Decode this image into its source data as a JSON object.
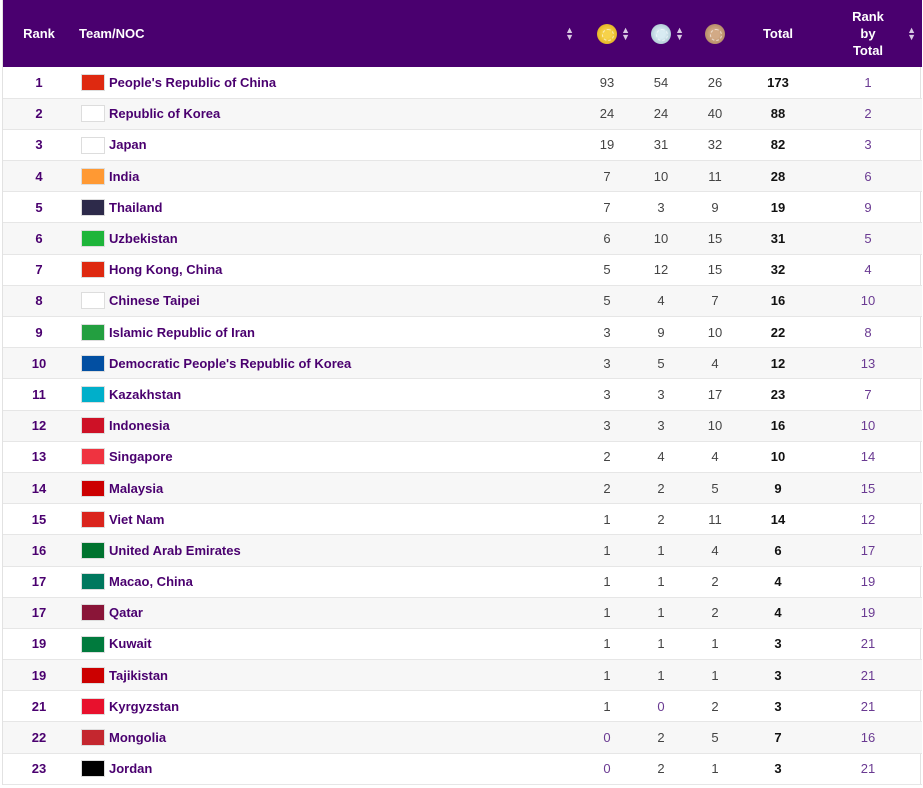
{
  "header": {
    "rank": "Rank",
    "team": "Team/NOC",
    "gold_icon": "gold-medal-icon",
    "silver_icon": "silver-medal-icon",
    "bronze_icon": "bronze-medal-icon",
    "total": "Total",
    "rank_by_total": [
      "Rank",
      "by",
      "Total"
    ]
  },
  "rows": [
    {
      "rank": "1",
      "team": "People's Republic of China",
      "gold": "93",
      "silver": "54",
      "bronze": "26",
      "total": "173",
      "rbt": "1",
      "flag": "#de2910"
    },
    {
      "rank": "2",
      "team": "Republic of Korea",
      "gold": "24",
      "silver": "24",
      "bronze": "40",
      "total": "88",
      "rbt": "2",
      "flag": "#ffffff"
    },
    {
      "rank": "3",
      "team": "Japan",
      "gold": "19",
      "silver": "31",
      "bronze": "32",
      "total": "82",
      "rbt": "3",
      "flag": "#ffffff"
    },
    {
      "rank": "4",
      "team": "India",
      "gold": "7",
      "silver": "10",
      "bronze": "11",
      "total": "28",
      "rbt": "6",
      "flag": "#ff9933"
    },
    {
      "rank": "5",
      "team": "Thailand",
      "gold": "7",
      "silver": "3",
      "bronze": "9",
      "total": "19",
      "rbt": "9",
      "flag": "#2d2a4a"
    },
    {
      "rank": "6",
      "team": "Uzbekistan",
      "gold": "6",
      "silver": "10",
      "bronze": "15",
      "total": "31",
      "rbt": "5",
      "flag": "#1eb53a"
    },
    {
      "rank": "7",
      "team": "Hong Kong, China",
      "gold": "5",
      "silver": "12",
      "bronze": "15",
      "total": "32",
      "rbt": "4",
      "flag": "#de2910"
    },
    {
      "rank": "8",
      "team": "Chinese Taipei",
      "gold": "5",
      "silver": "4",
      "bronze": "7",
      "total": "16",
      "rbt": "10",
      "flag": "#ffffff"
    },
    {
      "rank": "9",
      "team": "Islamic Republic of Iran",
      "gold": "3",
      "silver": "9",
      "bronze": "10",
      "total": "22",
      "rbt": "8",
      "flag": "#239f40"
    },
    {
      "rank": "10",
      "team": "Democratic People's Republic of Korea",
      "gold": "3",
      "silver": "5",
      "bronze": "4",
      "total": "12",
      "rbt": "13",
      "flag": "#024fa2"
    },
    {
      "rank": "11",
      "team": "Kazakhstan",
      "gold": "3",
      "silver": "3",
      "bronze": "17",
      "total": "23",
      "rbt": "7",
      "flag": "#00afca"
    },
    {
      "rank": "12",
      "team": "Indonesia",
      "gold": "3",
      "silver": "3",
      "bronze": "10",
      "total": "16",
      "rbt": "10",
      "flag": "#ce1126"
    },
    {
      "rank": "13",
      "team": "Singapore",
      "gold": "2",
      "silver": "4",
      "bronze": "4",
      "total": "10",
      "rbt": "14",
      "flag": "#ef3340"
    },
    {
      "rank": "14",
      "team": "Malaysia",
      "gold": "2",
      "silver": "2",
      "bronze": "5",
      "total": "9",
      "rbt": "15",
      "flag": "#cc0001"
    },
    {
      "rank": "15",
      "team": "Viet Nam",
      "gold": "1",
      "silver": "2",
      "bronze": "11",
      "total": "14",
      "rbt": "12",
      "flag": "#da251d"
    },
    {
      "rank": "16",
      "team": "United Arab Emirates",
      "gold": "1",
      "silver": "1",
      "bronze": "4",
      "total": "6",
      "rbt": "17",
      "flag": "#00732f"
    },
    {
      "rank": "17",
      "team": "Macao, China",
      "gold": "1",
      "silver": "1",
      "bronze": "2",
      "total": "4",
      "rbt": "19",
      "flag": "#00785e"
    },
    {
      "rank": "17",
      "team": "Qatar",
      "gold": "1",
      "silver": "1",
      "bronze": "2",
      "total": "4",
      "rbt": "19",
      "flag": "#8a1538"
    },
    {
      "rank": "19",
      "team": "Kuwait",
      "gold": "1",
      "silver": "1",
      "bronze": "1",
      "total": "3",
      "rbt": "21",
      "flag": "#007a3d"
    },
    {
      "rank": "19",
      "team": "Tajikistan",
      "gold": "1",
      "silver": "1",
      "bronze": "1",
      "total": "3",
      "rbt": "21",
      "flag": "#cc0000"
    },
    {
      "rank": "21",
      "team": "Kyrgyzstan",
      "gold": "1",
      "silver": "0",
      "bronze": "2",
      "total": "3",
      "rbt": "21",
      "flag": "#e8112d"
    },
    {
      "rank": "22",
      "team": "Mongolia",
      "gold": "0",
      "silver": "2",
      "bronze": "5",
      "total": "7",
      "rbt": "16",
      "flag": "#c4272f"
    },
    {
      "rank": "23",
      "team": "Jordan",
      "gold": "0",
      "silver": "2",
      "bronze": "1",
      "total": "3",
      "rbt": "21",
      "flag": "#000000"
    }
  ]
}
